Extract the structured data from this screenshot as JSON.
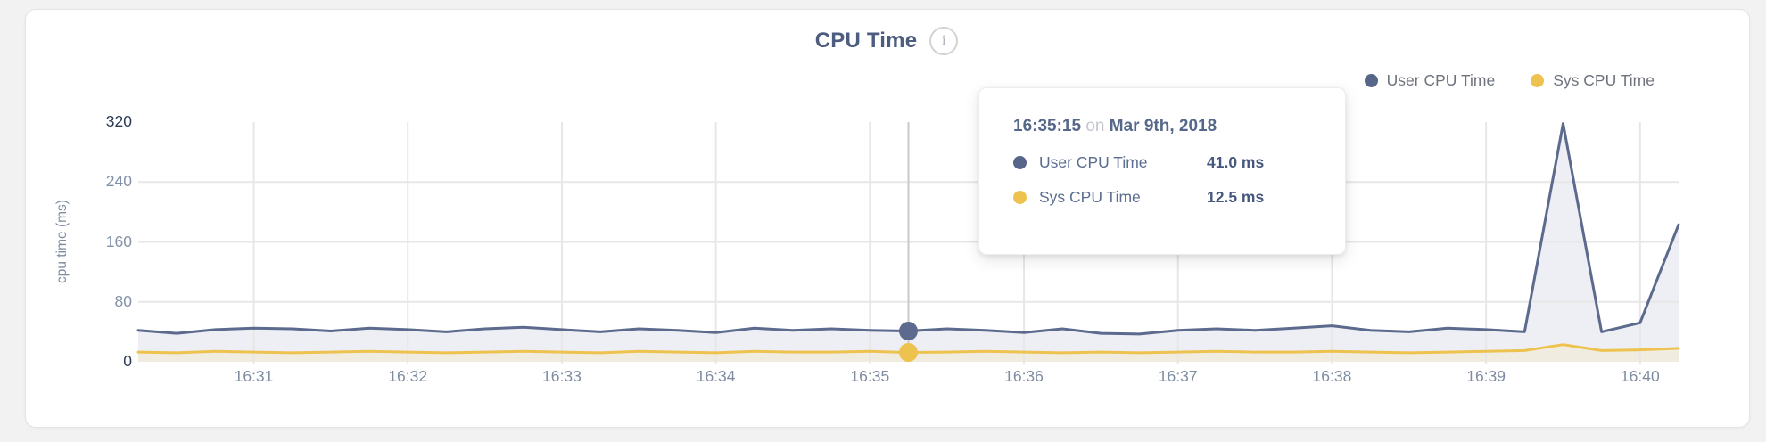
{
  "header": {
    "title": "CPU Time",
    "info_icon_glyph": "i"
  },
  "legend": [
    {
      "label": "User CPU Time",
      "color": "#566689"
    },
    {
      "label": "Sys CPU Time",
      "color": "#eec24f"
    }
  ],
  "tooltip": {
    "time": "16:35:15",
    "connector": "on",
    "date": "Mar 9th, 2018",
    "rows": [
      {
        "label": "User CPU Time",
        "value": "41.0 ms",
        "color": "#566689"
      },
      {
        "label": "Sys CPU Time",
        "value": "12.5 ms",
        "color": "#eec24f"
      }
    ]
  },
  "colors": {
    "user_line": "#5b6a8d",
    "user_fill": "#edeff4",
    "sys_line": "#eec24f",
    "sys_fill": "#f0ecdf",
    "grid": "#e7e7e7",
    "crosshair": "#c9c9c9",
    "axis_text": "#8391a7",
    "axis_text_emph": "#2b3a57",
    "x_text": "#7e8ba1"
  },
  "chart_data": {
    "type": "area",
    "title": "CPU Time",
    "ylabel": "cpu time (ms)",
    "ylim": [
      0,
      320
    ],
    "yticks": [
      {
        "v": 0,
        "label": "0",
        "emph": true,
        "grid": false
      },
      {
        "v": 80,
        "label": "80",
        "emph": false,
        "grid": true
      },
      {
        "v": 160,
        "label": "160",
        "emph": false,
        "grid": true
      },
      {
        "v": 240,
        "label": "240",
        "emph": false,
        "grid": true
      },
      {
        "v": 320,
        "label": "320",
        "emph": true,
        "grid": false
      }
    ],
    "x_unit": "seconds from 16:30:15",
    "x_step_sec": 15,
    "x_total_sec": 600,
    "xticks": [
      {
        "sec": 45,
        "label": "16:31"
      },
      {
        "sec": 105,
        "label": "16:32"
      },
      {
        "sec": 165,
        "label": "16:33"
      },
      {
        "sec": 225,
        "label": "16:34"
      },
      {
        "sec": 285,
        "label": "16:35"
      },
      {
        "sec": 345,
        "label": "16:36"
      },
      {
        "sec": 405,
        "label": "16:37"
      },
      {
        "sec": 465,
        "label": "16:38"
      },
      {
        "sec": 525,
        "label": "16:39"
      },
      {
        "sec": 585,
        "label": "16:40"
      }
    ],
    "grid": true,
    "legend_position": "top-right",
    "series": [
      {
        "name": "User CPU Time",
        "color": "#5b6a8d",
        "fill": "#edeff4",
        "values": [
          42,
          38,
          43,
          45,
          44,
          41,
          45,
          43,
          40,
          44,
          46,
          43,
          40,
          44,
          42,
          39,
          45,
          42,
          44,
          42,
          41,
          44,
          42,
          39,
          44,
          38,
          37,
          42,
          44,
          42,
          45,
          48,
          42,
          40,
          45,
          43,
          40,
          318,
          40,
          52,
          183
        ]
      },
      {
        "name": "Sys CPU Time",
        "color": "#eec24f",
        "fill": "#f0ecdf",
        "values": [
          13,
          12,
          14,
          13,
          12,
          13,
          14,
          13,
          12,
          13,
          14,
          13,
          12,
          14,
          13,
          12,
          14,
          13,
          13,
          14,
          12.5,
          13,
          14,
          13,
          12,
          13,
          12,
          13,
          14,
          13,
          13,
          14,
          13,
          12,
          13,
          14,
          15,
          23,
          15,
          16,
          18
        ]
      }
    ],
    "highlight": {
      "index": 20,
      "time": "16:35:15",
      "date": "Mar 9th, 2018",
      "user_cpu_ms": 41.0,
      "sys_cpu_ms": 12.5
    }
  }
}
